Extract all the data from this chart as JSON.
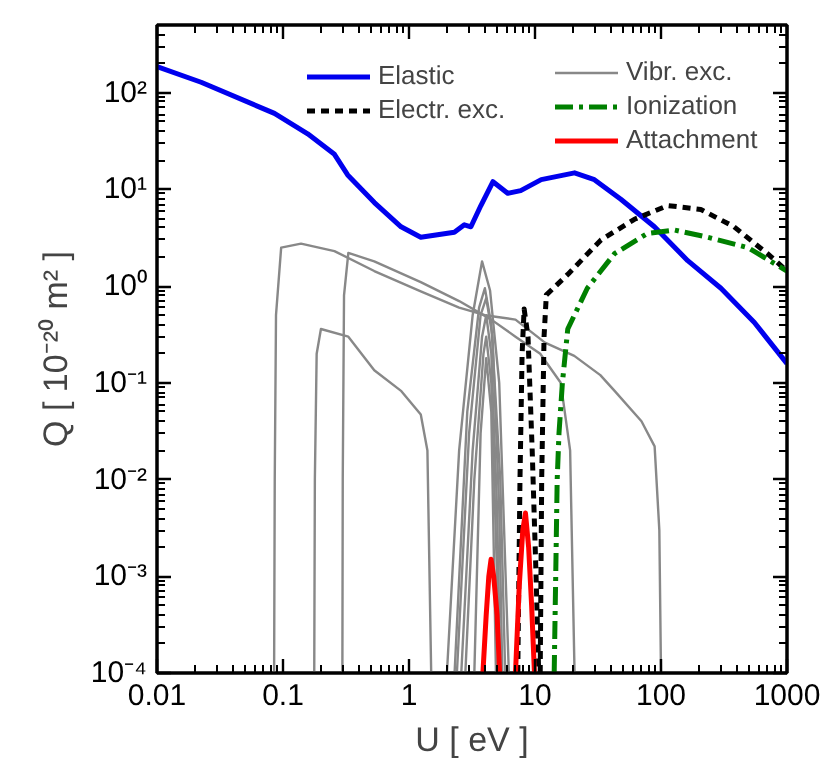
{
  "chart_data": {
    "type": "line",
    "xlabel": "U [ eV ]",
    "ylabel": "Q [ 10⁻²⁰ m² ]",
    "log": "xy",
    "legend": "top right",
    "grid": false,
    "xlim": [
      0.01,
      1000
    ],
    "xticks": [
      0.01,
      0.1,
      1,
      10,
      100,
      1000
    ],
    "ylim": [
      0.0001,
      500
    ],
    "yticks": [
      {
        "value": 0.0001,
        "label": "10⁻⁴"
      },
      {
        "value": 0.001,
        "label": "10⁻³"
      },
      {
        "value": 0.01,
        "label": "10⁻²"
      },
      {
        "value": 0.1,
        "label": "10⁻¹"
      },
      {
        "value": 1,
        "label": "10⁰"
      },
      {
        "value": 10,
        "label": "10¹"
      },
      {
        "value": 100,
        "label": "10²"
      }
    ],
    "series": [
      {
        "name": "Vibr. exc.",
        "color": "#888888",
        "line_style": "solid",
        "x": [
          0.085,
          0.086,
          0.088,
          0.0967,
          0.139,
          0.256,
          0.53,
          1.24,
          2.5,
          4,
          7,
          12,
          20.5,
          33,
          43,
          70,
          89,
          97,
          100
        ],
        "values": [
          0.0001,
          0.01,
          0.5,
          2.5,
          2.75,
          2.3,
          1.43,
          0.88,
          0.6,
          0.5,
          0.45,
          0.26,
          0.19,
          0.12,
          0.082,
          0.04,
          0.022,
          0.003,
          0.0001
        ]
      },
      {
        "color": "#888888",
        "line_style": "solid",
        "x": [
          0.296,
          0.298,
          0.305,
          0.33,
          0.53,
          1.24,
          2.5,
          4.5,
          7,
          11,
          16,
          19,
          20.6
        ],
        "values": [
          0.0001,
          0.01,
          0.8,
          2.2,
          1.8,
          1.1,
          0.7,
          0.45,
          0.3,
          0.2,
          0.1,
          0.02,
          0.0001
        ]
      },
      {
        "color": "#888888",
        "line_style": "solid",
        "x": [
          0.177,
          0.179,
          0.185,
          0.2,
          0.33,
          0.53,
          0.87,
          1.24,
          1.4,
          1.5
        ],
        "values": [
          0.0001,
          0.01,
          0.2,
          0.36,
          0.3,
          0.135,
          0.082,
          0.047,
          0.02,
          0.0001
        ]
      },
      {
        "color": "#888888",
        "line_style": "solid",
        "x": [
          2.0,
          2.5,
          3.2,
          3.8,
          4.4,
          5.2,
          6.2
        ],
        "values": [
          0.0001,
          0.02,
          0.5,
          1.8,
          0.9,
          0.1,
          0.0001
        ]
      },
      {
        "color": "#888888",
        "line_style": "solid",
        "x": [
          2.3,
          2.9,
          3.6,
          4.0,
          4.5,
          5.3,
          5.8
        ],
        "values": [
          0.0001,
          0.05,
          0.6,
          0.95,
          0.4,
          0.01,
          0.0001
        ]
      },
      {
        "color": "#888888",
        "line_style": "solid",
        "x": [
          2.4,
          3.0,
          3.7,
          4.1,
          4.6,
          5.2,
          5.5
        ],
        "values": [
          0.0001,
          0.03,
          0.5,
          0.75,
          0.3,
          0.005,
          0.0001
        ]
      },
      {
        "color": "#888888",
        "line_style": "solid",
        "x": [
          2.6,
          3.2,
          3.8,
          4.1,
          4.5,
          5.0,
          5.3
        ],
        "values": [
          0.0001,
          0.02,
          0.3,
          0.5,
          0.2,
          0.005,
          0.0001
        ]
      },
      {
        "color": "#888888",
        "line_style": "solid",
        "x": [
          2.8,
          3.3,
          3.9,
          4.1,
          4.5,
          5.0,
          5.2
        ],
        "values": [
          0.0001,
          0.01,
          0.2,
          0.3,
          0.1,
          0.001,
          0.0001
        ]
      },
      {
        "color": "#888888",
        "line_style": "solid",
        "x": [
          3.3,
          3.7,
          4.1,
          4.5,
          4.9
        ],
        "values": [
          0.0001,
          0.03,
          0.18,
          0.05,
          0.0001
        ]
      },
      {
        "name": "Elastic",
        "color": "#0000ee",
        "line_style": "solid",
        "x": [
          0.01,
          0.0224,
          0.0855,
          0.157,
          0.256,
          0.326,
          0.531,
          0.865,
          1.24,
          2.29,
          2.75,
          3.1,
          3.72,
          4.64,
          6.07,
          7.7,
          11.2,
          20.6,
          29.6,
          48,
          88.7,
          163,
          299,
          551,
          1000
        ],
        "values": [
          186,
          128,
          61,
          37.5,
          23,
          14.1,
          7.3,
          4.1,
          3.2,
          3.6,
          4.3,
          4.1,
          6.8,
          12,
          9.1,
          9.7,
          12.6,
          14.8,
          12.6,
          7.9,
          4.1,
          1.83,
          0.95,
          0.42,
          0.158
        ]
      },
      {
        "name": "Electr. exc.",
        "color": "#000000",
        "line_style": "dashed",
        "x": [
          7.3,
          7.6,
          7.9,
          8.2,
          8.8,
          9.5,
          10.2,
          10.7,
          10.8,
          11.0,
          11.3,
          11.8,
          12.3,
          18.2,
          33.4,
          61.5,
          113,
          207,
          380,
          701,
          1000
        ],
        "values": [
          0.0001,
          0.01,
          0.2,
          0.58,
          0.3,
          0.02,
          0.001,
          0.0001,
          null,
          0.0001,
          0.01,
          0.3,
          0.81,
          1.32,
          3.0,
          4.9,
          6.8,
          6.2,
          4.1,
          2.16,
          1.43
        ]
      },
      {
        "name": "Ionization",
        "color": "#008000",
        "line_style": "dashdot",
        "x": [
          14.2,
          14.6,
          15.0,
          15.5,
          16.5,
          18.2,
          26,
          42.7,
          78,
          128,
          234,
          490,
          1000
        ],
        "values": [
          0.0001,
          0.001,
          0.01,
          0.03,
          0.1,
          0.36,
          0.95,
          2.16,
          3.5,
          3.8,
          3.2,
          2.5,
          1.43
        ]
      },
      {
        "name": "Attachment",
        "color": "#ff0000",
        "line_style": "solid",
        "x": [
          3.86,
          4.1,
          4.3,
          4.48,
          4.7,
          5.0,
          5.24,
          null,
          7.0,
          7.5,
          8.0,
          8.4,
          8.9,
          9.4,
          9.9
        ],
        "values": [
          0.0001,
          0.0004,
          0.001,
          0.0015,
          0.001,
          0.0004,
          0.0001,
          null,
          0.0001,
          0.0008,
          0.003,
          0.0045,
          0.002,
          0.0005,
          0.0001
        ]
      }
    ]
  }
}
